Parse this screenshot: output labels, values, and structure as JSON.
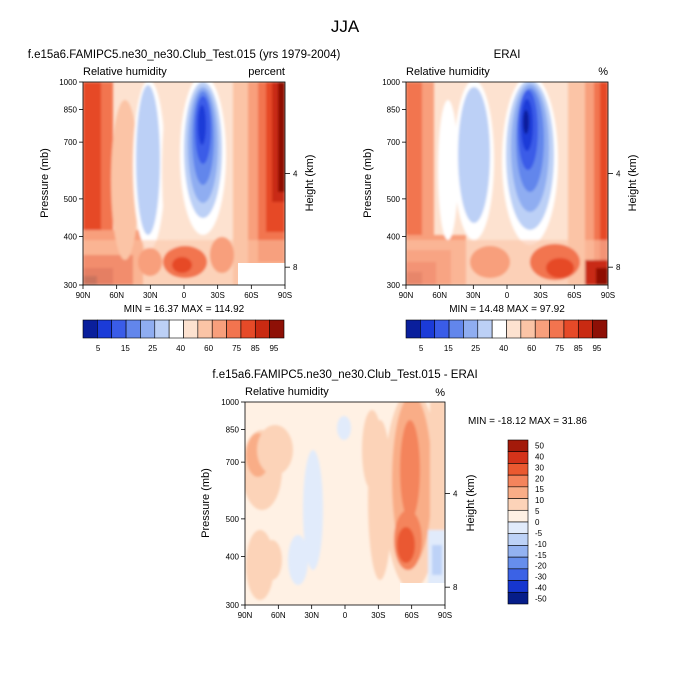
{
  "figure": {
    "title": "JJA"
  },
  "colors": {
    "full_palette": [
      "#0a1f9c",
      "#1b3bd8",
      "#3a5ce8",
      "#6286ec",
      "#8fadf1",
      "#bcd0f6",
      "#ffffff",
      "#fde2d0",
      "#fbc4a6",
      "#f89f7c",
      "#f2744f",
      "#e64a28",
      "#c92a12",
      "#8e1006"
    ],
    "diff_palette": [
      "#061d89",
      "#1636cf",
      "#3b62e6",
      "#668eec",
      "#93b2f1",
      "#bdd2f7",
      "#e1ebfb",
      "#fff1e4",
      "#fcd3b8",
      "#f9ad87",
      "#f4845c",
      "#ea5930",
      "#d4331a",
      "#a31a0a"
    ]
  },
  "chart_data": [
    {
      "type": "heatmap",
      "id": "model",
      "title": "f.e15a6.FAMIPC5.ne30_ne30.Club_Test.015 (yrs 1979-2004)",
      "variable": "Relative humidity",
      "units": "percent",
      "x_ticks": [
        "90N",
        "60N",
        "30N",
        "0",
        "30S",
        "60S",
        "90S"
      ],
      "y_ticks": [
        300,
        400,
        500,
        700,
        850,
        1000
      ],
      "ylabel": "Pressure (mb)",
      "right_ylabel": "Height (km)",
      "right_ticks": [
        "8",
        "4"
      ],
      "x_range": [
        "90N",
        "90S"
      ],
      "y_range": [
        1000,
        300
      ],
      "y_scale": "log",
      "stats": "MIN = 16.37  MAX = 114.92",
      "levels": [
        5,
        15,
        25,
        40,
        60,
        75,
        85,
        95
      ],
      "colorbar_labels": [
        "5",
        "15",
        "25",
        "40",
        "60",
        "75",
        "85",
        "95"
      ]
    },
    {
      "type": "heatmap",
      "id": "obs",
      "title": "ERAI",
      "variable": "Relative humidity",
      "units": "%",
      "x_ticks": [
        "90N",
        "60N",
        "30N",
        "0",
        "30S",
        "60S",
        "90S"
      ],
      "y_ticks": [
        300,
        400,
        500,
        700,
        850,
        1000
      ],
      "ylabel": "Pressure (mb)",
      "right_ylabel": "Height (km)",
      "right_ticks": [
        "8",
        "4"
      ],
      "x_range": [
        "90N",
        "90S"
      ],
      "y_range": [
        1000,
        300
      ],
      "y_scale": "log",
      "stats": "MIN = 14.48  MAX = 97.92",
      "levels": [
        5,
        15,
        25,
        40,
        60,
        75,
        85,
        95
      ],
      "colorbar_labels": [
        "5",
        "15",
        "25",
        "40",
        "60",
        "75",
        "85",
        "95"
      ]
    },
    {
      "type": "heatmap",
      "id": "diff",
      "title": "f.e15a6.FAMIPC5.ne30_ne30.Club_Test.015 - ERAI",
      "variable": "Relative humidity",
      "units": "%",
      "x_ticks": [
        "90N",
        "60N",
        "30N",
        "0",
        "30S",
        "60S",
        "90S"
      ],
      "y_ticks": [
        300,
        400,
        500,
        700,
        850,
        1000
      ],
      "ylabel": "Pressure (mb)",
      "right_ylabel": "Height (km)",
      "right_ticks": [
        "8",
        "4"
      ],
      "x_range": [
        "90N",
        "90S"
      ],
      "y_range": [
        1000,
        300
      ],
      "y_scale": "log",
      "stats": "MIN = -18.12  MAX = 31.86",
      "levels": [
        50,
        40,
        30,
        20,
        15,
        10,
        5,
        0,
        -5,
        -10,
        -15,
        -20,
        -30,
        -40,
        -50
      ],
      "colorbar_labels": [
        "50",
        "40",
        "30",
        "20",
        "15",
        "10",
        "5",
        "0",
        "-5",
        "-10",
        "-15",
        "-20",
        "-30",
        "-40",
        "-50"
      ]
    }
  ]
}
